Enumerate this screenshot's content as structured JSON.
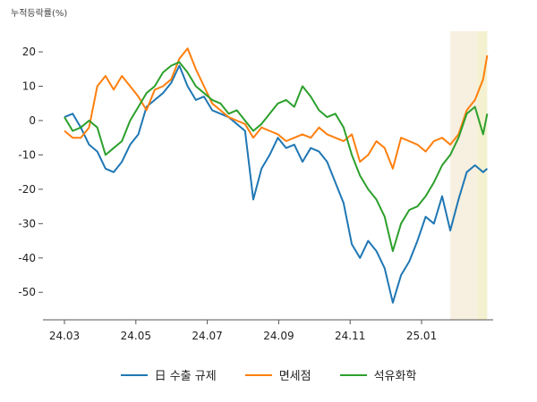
{
  "chart_data": {
    "type": "line",
    "ylabel": "누적등락률(%)",
    "ylim": [
      -58,
      26
    ],
    "yticks": [
      20,
      10,
      0,
      -10,
      -20,
      -30,
      -40,
      -50
    ],
    "x_range": [
      0,
      52
    ],
    "xticks": [
      {
        "label": "24.03",
        "x": 0
      },
      {
        "label": "24.05",
        "x": 8.7
      },
      {
        "label": "24.07",
        "x": 17.4
      },
      {
        "label": "24.09",
        "x": 26.1
      },
      {
        "label": "24.11",
        "x": 34.8
      },
      {
        "label": "25.01",
        "x": 43.5
      }
    ],
    "bands": [
      {
        "x0": 47.0,
        "x1": 50.3,
        "color": "#f7efe0"
      },
      {
        "x0": 50.3,
        "x1": 51.5,
        "color": "#f4f1d0"
      }
    ],
    "series": [
      {
        "name": "日 수출 규제",
        "color": "#1f77b4",
        "points": [
          [
            0,
            1
          ],
          [
            1,
            2
          ],
          [
            2,
            -2
          ],
          [
            3,
            -7
          ],
          [
            4,
            -9
          ],
          [
            5,
            -14
          ],
          [
            6,
            -15
          ],
          [
            7,
            -12
          ],
          [
            8,
            -7
          ],
          [
            9,
            -4
          ],
          [
            10,
            4
          ],
          [
            11,
            6
          ],
          [
            12,
            8
          ],
          [
            13,
            11
          ],
          [
            14,
            16
          ],
          [
            15,
            10
          ],
          [
            16,
            6
          ],
          [
            17,
            7
          ],
          [
            18,
            3
          ],
          [
            19,
            2
          ],
          [
            20,
            1
          ],
          [
            21,
            -1
          ],
          [
            22,
            -3
          ],
          [
            23,
            -23
          ],
          [
            24,
            -14
          ],
          [
            25,
            -10
          ],
          [
            26,
            -5
          ],
          [
            27,
            -8
          ],
          [
            28,
            -7
          ],
          [
            29,
            -12
          ],
          [
            30,
            -8
          ],
          [
            31,
            -9
          ],
          [
            32,
            -12
          ],
          [
            33,
            -18
          ],
          [
            34,
            -24
          ],
          [
            35,
            -36
          ],
          [
            36,
            -40
          ],
          [
            37,
            -35
          ],
          [
            38,
            -38
          ],
          [
            39,
            -43
          ],
          [
            40,
            -53
          ],
          [
            41,
            -45
          ],
          [
            42,
            -41
          ],
          [
            43,
            -35
          ],
          [
            44,
            -28
          ],
          [
            45,
            -30
          ],
          [
            46,
            -22
          ],
          [
            47,
            -32
          ],
          [
            48,
            -23
          ],
          [
            49,
            -15
          ],
          [
            50,
            -13
          ],
          [
            51,
            -15
          ],
          [
            51.5,
            -14
          ]
        ]
      },
      {
        "name": "면세점",
        "color": "#ff7f0e",
        "points": [
          [
            0,
            -3
          ],
          [
            1,
            -5
          ],
          [
            2,
            -5
          ],
          [
            3,
            -2
          ],
          [
            4,
            10
          ],
          [
            5,
            13
          ],
          [
            6,
            9
          ],
          [
            7,
            13
          ],
          [
            8,
            10
          ],
          [
            9,
            7
          ],
          [
            10,
            3
          ],
          [
            11,
            9
          ],
          [
            12,
            10
          ],
          [
            13,
            12
          ],
          [
            14,
            18
          ],
          [
            15,
            21
          ],
          [
            16,
            15
          ],
          [
            17,
            10
          ],
          [
            18,
            5
          ],
          [
            19,
            3
          ],
          [
            20,
            1
          ],
          [
            21,
            0
          ],
          [
            22,
            -1
          ],
          [
            23,
            -5
          ],
          [
            24,
            -2
          ],
          [
            25,
            -3
          ],
          [
            26,
            -4
          ],
          [
            27,
            -6
          ],
          [
            28,
            -5
          ],
          [
            29,
            -4
          ],
          [
            30,
            -5
          ],
          [
            31,
            -2
          ],
          [
            32,
            -4
          ],
          [
            33,
            -5
          ],
          [
            34,
            -6
          ],
          [
            35,
            -4
          ],
          [
            36,
            -12
          ],
          [
            37,
            -10
          ],
          [
            38,
            -6
          ],
          [
            39,
            -8
          ],
          [
            40,
            -14
          ],
          [
            41,
            -5
          ],
          [
            42,
            -6
          ],
          [
            43,
            -7
          ],
          [
            44,
            -9
          ],
          [
            45,
            -6
          ],
          [
            46,
            -5
          ],
          [
            47,
            -7
          ],
          [
            48,
            -4
          ],
          [
            49,
            3
          ],
          [
            50,
            6
          ],
          [
            51,
            12
          ],
          [
            51.5,
            19
          ]
        ]
      },
      {
        "name": "석유화학",
        "color": "#2ca02c",
        "points": [
          [
            0,
            1
          ],
          [
            1,
            -3
          ],
          [
            2,
            -2
          ],
          [
            3,
            0
          ],
          [
            4,
            -2
          ],
          [
            5,
            -10
          ],
          [
            6,
            -8
          ],
          [
            7,
            -6
          ],
          [
            8,
            0
          ],
          [
            9,
            4
          ],
          [
            10,
            8
          ],
          [
            11,
            10
          ],
          [
            12,
            14
          ],
          [
            13,
            16
          ],
          [
            14,
            17
          ],
          [
            15,
            14
          ],
          [
            16,
            10
          ],
          [
            17,
            8
          ],
          [
            18,
            6
          ],
          [
            19,
            5
          ],
          [
            20,
            2
          ],
          [
            21,
            3
          ],
          [
            22,
            0
          ],
          [
            23,
            -3
          ],
          [
            24,
            -1
          ],
          [
            25,
            2
          ],
          [
            26,
            5
          ],
          [
            27,
            6
          ],
          [
            28,
            4
          ],
          [
            29,
            10
          ],
          [
            30,
            7
          ],
          [
            31,
            3
          ],
          [
            32,
            1
          ],
          [
            33,
            2
          ],
          [
            34,
            -2
          ],
          [
            35,
            -10
          ],
          [
            36,
            -16
          ],
          [
            37,
            -20
          ],
          [
            38,
            -23
          ],
          [
            39,
            -28
          ],
          [
            40,
            -38
          ],
          [
            41,
            -30
          ],
          [
            42,
            -26
          ],
          [
            43,
            -25
          ],
          [
            44,
            -22
          ],
          [
            45,
            -18
          ],
          [
            46,
            -13
          ],
          [
            47,
            -10
          ],
          [
            48,
            -5
          ],
          [
            49,
            2
          ],
          [
            50,
            4
          ],
          [
            51,
            -4
          ],
          [
            51.5,
            2
          ]
        ]
      }
    ]
  },
  "legend": [
    {
      "label": "日 수출 규제",
      "color": "#1f77b4"
    },
    {
      "label": "면세점",
      "color": "#ff7f0e"
    },
    {
      "label": "석유화학",
      "color": "#2ca02c"
    }
  ]
}
